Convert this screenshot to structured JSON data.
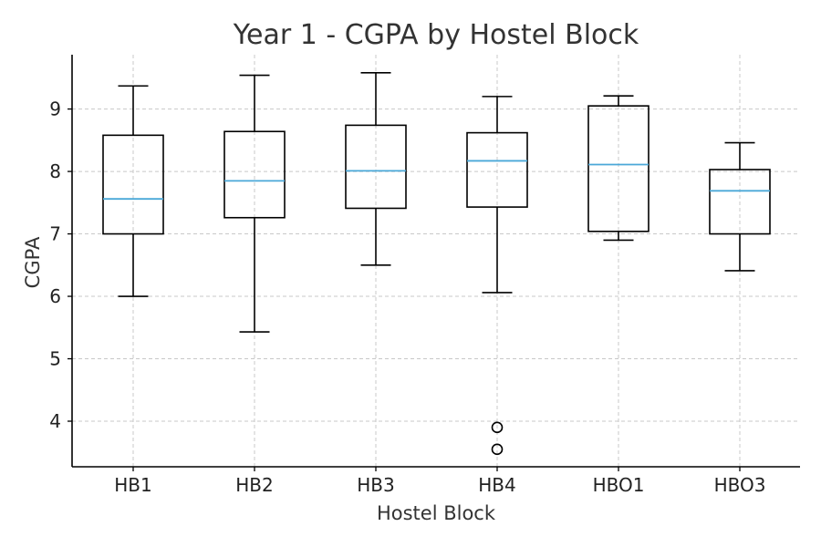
{
  "chart_data": {
    "type": "box",
    "title": "Year 1 - CGPA by Hostel Block",
    "xlabel": "Hostel Block",
    "ylabel": "CGPA",
    "ylim": [
      3.27,
      9.87
    ],
    "yticks": [
      4,
      5,
      6,
      7,
      8,
      9
    ],
    "grid": true,
    "categories": [
      "HB1",
      "HB2",
      "HB3",
      "HB4",
      "HBO1",
      "HBO3"
    ],
    "boxes": [
      {
        "category": "HB1",
        "whisker_low": 6.0,
        "q1": 7.0,
        "median": 7.56,
        "q3": 8.58,
        "whisker_high": 9.37,
        "outliers": []
      },
      {
        "category": "HB2",
        "whisker_low": 5.43,
        "q1": 7.26,
        "median": 7.85,
        "q3": 8.64,
        "whisker_high": 9.54,
        "outliers": []
      },
      {
        "category": "HB3",
        "whisker_low": 6.5,
        "q1": 7.41,
        "median": 8.01,
        "q3": 8.74,
        "whisker_high": 9.58,
        "outliers": []
      },
      {
        "category": "HB4",
        "whisker_low": 6.06,
        "q1": 7.43,
        "median": 8.17,
        "q3": 8.62,
        "whisker_high": 9.2,
        "outliers": [
          3.9,
          3.55
        ]
      },
      {
        "category": "HBO1",
        "whisker_low": 6.9,
        "q1": 7.04,
        "median": 8.11,
        "q3": 9.05,
        "whisker_high": 9.21,
        "outliers": []
      },
      {
        "category": "HBO3",
        "whisker_low": 6.41,
        "q1": 7.0,
        "median": 7.69,
        "q3": 8.03,
        "whisker_high": 8.46,
        "outliers": []
      }
    ],
    "colors": {
      "box": "#000000",
      "median": "#4aa8d8",
      "grid": "#c8c8c8"
    }
  }
}
